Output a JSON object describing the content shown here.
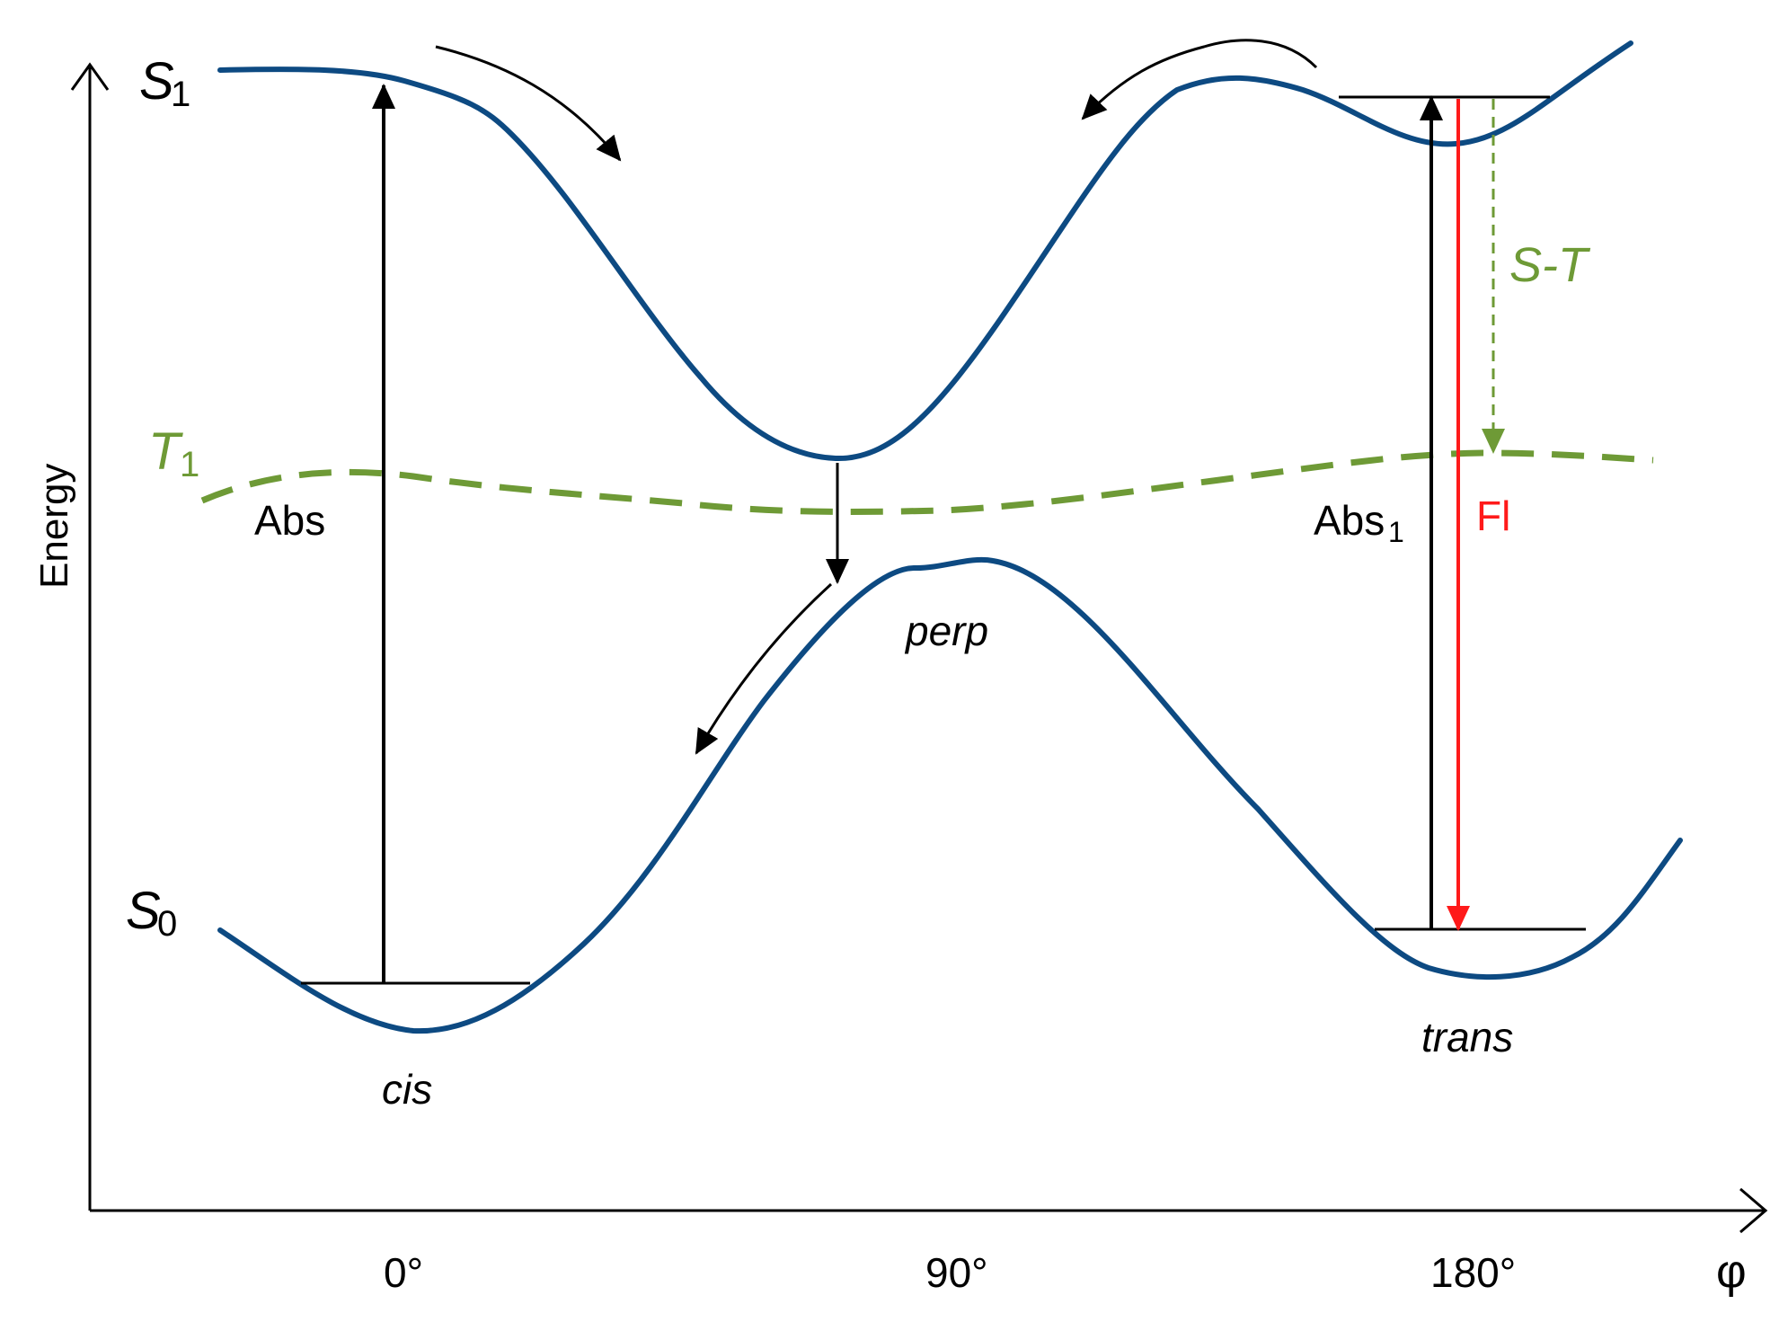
{
  "labels": {
    "y_axis": "Energy",
    "x_axis": "φ",
    "s1": "S",
    "s1_sub": "1",
    "s0": "S",
    "s0_sub": "0",
    "t1": "T",
    "t1_sub": "1",
    "abs": "Abs",
    "abs1": "Abs",
    "abs1_sub": "1",
    "fl": "Fl",
    "st": "S-T",
    "perp": "perp",
    "cis": "cis",
    "trans": "trans"
  },
  "ticks": [
    "0°",
    "90°",
    "180°"
  ],
  "colors": {
    "potential_curve": "#0d4a82",
    "triplet_curve": "#6e9a36",
    "fluorescence": "#ff1a1a",
    "axis": "#000000"
  }
}
